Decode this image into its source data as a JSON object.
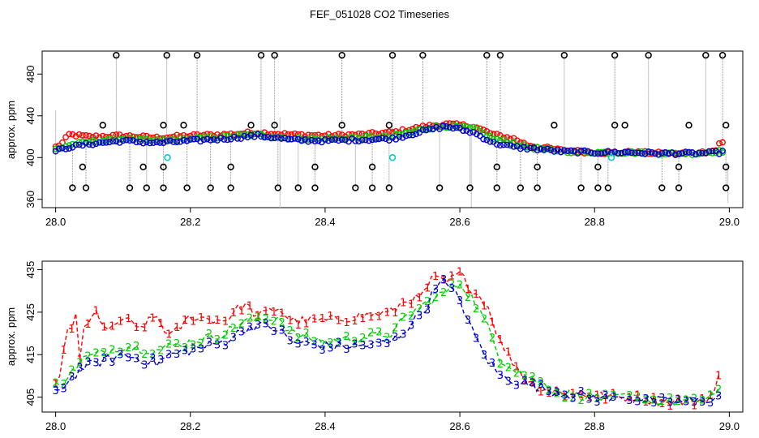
{
  "title": "FEF_051028  CO2 Timeseries",
  "chart_data": [
    {
      "type": "scatter",
      "panel": "top",
      "ylabel": "approx. ppm",
      "xlabel": "",
      "xlim": [
        27.98,
        29.02
      ],
      "ylim": [
        352,
        502
      ],
      "x_ticks": [
        28.0,
        28.2,
        28.4,
        28.6,
        28.8,
        29.0
      ],
      "x_tick_labels": [
        "28.0",
        "28.2",
        "28.4",
        "28.6",
        "28.8",
        "29.0"
      ],
      "y_ticks": [
        360,
        400,
        440,
        480
      ],
      "y_tick_labels": [
        "360",
        "400",
        "440",
        "480"
      ],
      "colors": {
        "s1": "#ff0000",
        "s2": "#00cc00",
        "s3": "#0000cc",
        "outlier": "#000000",
        "flag": "#00cccc",
        "spike": "#888888"
      },
      "marker": "o",
      "series": [
        {
          "name": "1",
          "color": "#ff0000",
          "trend": [
            [
              28.0,
              410
            ],
            [
              28.01,
              414
            ],
            [
              28.02,
              422
            ],
            [
              28.05,
              420
            ],
            [
              28.1,
              421
            ],
            [
              28.15,
              419
            ],
            [
              28.2,
              421
            ],
            [
              28.25,
              422
            ],
            [
              28.3,
              424
            ],
            [
              28.35,
              422
            ],
            [
              28.4,
              421
            ],
            [
              28.45,
              422
            ],
            [
              28.5,
              424
            ],
            [
              28.55,
              430
            ],
            [
              28.58,
              432
            ],
            [
              28.62,
              430
            ],
            [
              28.65,
              422
            ],
            [
              28.68,
              418
            ],
            [
              28.7,
              412
            ],
            [
              28.75,
              407
            ],
            [
              28.8,
              405
            ],
            [
              28.83,
              404
            ],
            [
              28.85,
              405
            ],
            [
              28.9,
              404
            ],
            [
              28.95,
              404
            ],
            [
              28.98,
              407
            ],
            [
              28.985,
              414
            ]
          ]
        },
        {
          "name": "2",
          "color": "#00cc00",
          "trend": [
            [
              28.0,
              408
            ],
            [
              28.02,
              412
            ],
            [
              28.05,
              415
            ],
            [
              28.1,
              418
            ],
            [
              28.15,
              416
            ],
            [
              28.2,
              418
            ],
            [
              28.25,
              420
            ],
            [
              28.3,
              422
            ],
            [
              28.35,
              418
            ],
            [
              28.4,
              418
            ],
            [
              28.45,
              419
            ],
            [
              28.5,
              420
            ],
            [
              28.55,
              428
            ],
            [
              28.58,
              430
            ],
            [
              28.62,
              428
            ],
            [
              28.65,
              418
            ],
            [
              28.68,
              414
            ],
            [
              28.7,
              410
            ],
            [
              28.75,
              406
            ],
            [
              28.8,
              405
            ],
            [
              28.85,
              405
            ],
            [
              28.9,
              404
            ],
            [
              28.95,
              404
            ],
            [
              28.985,
              406
            ]
          ]
        },
        {
          "name": "3",
          "color": "#0000cc",
          "trend": [
            [
              28.0,
              406
            ],
            [
              28.02,
              410
            ],
            [
              28.05,
              413
            ],
            [
              28.1,
              416
            ],
            [
              28.15,
              414
            ],
            [
              28.2,
              416
            ],
            [
              28.25,
              418
            ],
            [
              28.3,
              421
            ],
            [
              28.35,
              417
            ],
            [
              28.4,
              416
            ],
            [
              28.45,
              417
            ],
            [
              28.5,
              418
            ],
            [
              28.55,
              426
            ],
            [
              28.58,
              430
            ],
            [
              28.62,
              424
            ],
            [
              28.65,
              414
            ],
            [
              28.68,
              410
            ],
            [
              28.7,
              409
            ],
            [
              28.75,
              406
            ],
            [
              28.8,
              405
            ],
            [
              28.85,
              405
            ],
            [
              28.9,
              404
            ],
            [
              28.95,
              404
            ],
            [
              28.985,
              405
            ]
          ]
        }
      ],
      "outliers_high": [
        28.09,
        28.165,
        28.21,
        28.305,
        28.325,
        28.425,
        28.5,
        28.545,
        28.64,
        28.66,
        28.755,
        28.83,
        28.88,
        28.965,
        28.99
      ],
      "outliers_low": [
        28.025,
        28.045,
        28.11,
        28.135,
        28.16,
        28.195,
        28.23,
        28.26,
        28.33,
        28.36,
        28.385,
        28.445,
        28.47,
        28.495,
        28.57,
        28.615,
        28.655,
        28.69,
        28.715,
        28.78,
        28.805,
        28.82,
        28.9,
        28.925,
        28.995
      ],
      "outliers_mid": [
        28.07,
        28.16,
        28.19,
        28.29,
        28.325,
        28.425,
        28.495,
        28.74,
        28.83,
        28.845,
        28.94,
        28.995
      ],
      "flags": [
        [
          28.166,
          400
        ],
        [
          28.5,
          400
        ],
        [
          28.825,
          400
        ]
      ]
    },
    {
      "type": "line",
      "panel": "bottom",
      "ylabel": "approx. ppm",
      "xlabel": "",
      "xlim": [
        27.98,
        29.02
      ],
      "ylim": [
        401.5,
        437
      ],
      "x_ticks": [
        28.0,
        28.2,
        28.4,
        28.6,
        28.8,
        29.0
      ],
      "x_tick_labels": [
        "28.0",
        "28.2",
        "28.4",
        "28.6",
        "28.8",
        "29.0"
      ],
      "y_ticks": [
        405,
        415,
        425,
        435
      ],
      "y_tick_labels": [
        "405",
        "415",
        "425",
        "435"
      ],
      "marker": "digit",
      "series": [
        {
          "name": "1",
          "color": "#ff0000",
          "trend": [
            [
              28.0,
              409
            ],
            [
              28.01,
              410
            ],
            [
              28.015,
              424
            ],
            [
              28.02,
              418
            ],
            [
              28.03,
              425
            ],
            [
              28.035,
              413
            ],
            [
              28.04,
              420
            ],
            [
              28.06,
              425
            ],
            [
              28.08,
              420
            ],
            [
              28.1,
              424
            ],
            [
              28.12,
              421
            ],
            [
              28.15,
              424
            ],
            [
              28.17,
              419
            ],
            [
              28.2,
              424
            ],
            [
              28.25,
              423
            ],
            [
              28.28,
              427
            ],
            [
              28.3,
              424
            ],
            [
              28.33,
              426
            ],
            [
              28.35,
              423
            ],
            [
              28.4,
              423
            ],
            [
              28.45,
              424
            ],
            [
              28.5,
              425
            ],
            [
              28.52,
              428
            ],
            [
              28.54,
              428
            ],
            [
              28.56,
              433
            ],
            [
              28.58,
              432
            ],
            [
              28.6,
              434
            ],
            [
              28.62,
              430
            ],
            [
              28.64,
              427
            ],
            [
              28.66,
              418
            ],
            [
              28.68,
              413
            ],
            [
              28.7,
              409
            ],
            [
              28.72,
              407
            ],
            [
              28.75,
              406
            ],
            [
              28.8,
              405.5
            ],
            [
              28.83,
              405
            ],
            [
              28.85,
              405
            ],
            [
              28.9,
              404
            ],
            [
              28.95,
              404
            ],
            [
              28.97,
              405
            ],
            [
              28.98,
              407
            ],
            [
              28.985,
              410
            ]
          ]
        },
        {
          "name": "2",
          "color": "#00cc00",
          "trend": [
            [
              28.0,
              408
            ],
            [
              28.02,
              410
            ],
            [
              28.04,
              414
            ],
            [
              28.06,
              415
            ],
            [
              28.1,
              417
            ],
            [
              28.15,
              416
            ],
            [
              28.17,
              417
            ],
            [
              28.2,
              418
            ],
            [
              28.25,
              420
            ],
            [
              28.28,
              423
            ],
            [
              28.3,
              423
            ],
            [
              28.33,
              424
            ],
            [
              28.35,
              420
            ],
            [
              28.4,
              418
            ],
            [
              28.45,
              419
            ],
            [
              28.5,
              420
            ],
            [
              28.52,
              424
            ],
            [
              28.55,
              427
            ],
            [
              28.58,
              430
            ],
            [
              28.6,
              432
            ],
            [
              28.62,
              428
            ],
            [
              28.64,
              422
            ],
            [
              28.66,
              414
            ],
            [
              28.68,
              412
            ],
            [
              28.7,
              410
            ],
            [
              28.75,
              406
            ],
            [
              28.8,
              405
            ],
            [
              28.83,
              404.5
            ],
            [
              28.85,
              405
            ],
            [
              28.9,
              404
            ],
            [
              28.95,
              404
            ],
            [
              28.985,
              406
            ]
          ]
        },
        {
          "name": "3",
          "color": "#0000cc",
          "trend": [
            [
              28.0,
              406
            ],
            [
              28.02,
              409
            ],
            [
              28.04,
              412
            ],
            [
              28.06,
              413
            ],
            [
              28.1,
              415
            ],
            [
              28.15,
              413
            ],
            [
              28.17,
              415
            ],
            [
              28.2,
              416
            ],
            [
              28.25,
              418
            ],
            [
              28.28,
              421
            ],
            [
              28.3,
              422
            ],
            [
              28.33,
              421
            ],
            [
              28.35,
              418
            ],
            [
              28.4,
              417
            ],
            [
              28.45,
              417
            ],
            [
              28.5,
              418
            ],
            [
              28.52,
              421
            ],
            [
              28.55,
              426
            ],
            [
              28.57,
              433
            ],
            [
              28.6,
              428
            ],
            [
              28.62,
              420
            ],
            [
              28.64,
              414
            ],
            [
              28.66,
              410
            ],
            [
              28.68,
              409
            ],
            [
              28.7,
              408
            ],
            [
              28.75,
              406
            ],
            [
              28.8,
              405
            ],
            [
              28.83,
              404.5
            ],
            [
              28.85,
              405
            ],
            [
              28.9,
              404
            ],
            [
              28.95,
              404
            ],
            [
              28.985,
              405
            ]
          ]
        }
      ]
    }
  ]
}
